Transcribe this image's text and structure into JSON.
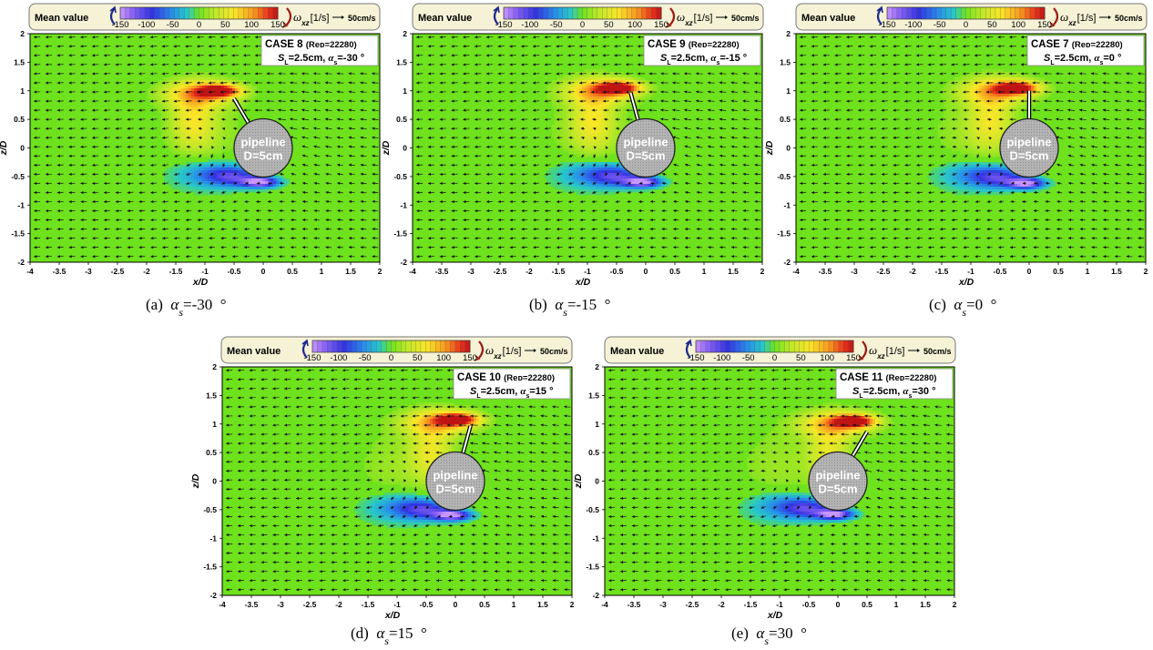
{
  "legend": {
    "title": "Mean value",
    "ticks": [
      "-150",
      "-100",
      "-50",
      "0",
      "50",
      "100",
      "150"
    ],
    "quantity_symbol": "ω",
    "quantity_subscript": "xz",
    "quantity_unit": "[1/s]",
    "reference_arrow_label": "50cm/s"
  },
  "axes": {
    "xlabel": "x/D",
    "ylabel": "z/D",
    "xticks": [
      "-4",
      "-3.5",
      "-3",
      "-2.5",
      "-2",
      "-1.5",
      "-1",
      "-0.5",
      "0",
      "0.5",
      "1",
      "1.5",
      "2"
    ],
    "yticks": [
      "2",
      "1.5",
      "1",
      "0.5",
      "0",
      "-0.5",
      "-1",
      "-1.5",
      "-2"
    ]
  },
  "pipeline": {
    "name": "pipeline",
    "diameter_label": "D=5cm"
  },
  "spoiler_length_label": "SL=2.5cm",
  "colors": {
    "background_green": "#6ee21d",
    "positive_vortex": "#e8321a",
    "negative_vortex": "#2d2fd8",
    "pipeline_fill": "#b4b4b4",
    "legend_box": "#f6f2d6"
  },
  "chart_data": [
    {
      "type": "heatmap",
      "panel": "(a)",
      "case": "CASE 8",
      "reynolds": "Re_D=22280",
      "spoiler_length": "S_L=2.5cm",
      "alpha_s_box": "α_s=-30 °",
      "caption": "(a)  α_s=-30  °",
      "alpha_s_deg": -30,
      "xlim": [
        -4,
        2
      ],
      "ylim": [
        -2,
        2
      ],
      "colorbar_range": [
        -150,
        150
      ],
      "pipeline_center": [
        0,
        0
      ],
      "pipeline_diameter_D": 1,
      "positive_vortex_peak": {
        "x": -0.75,
        "z": 1.0
      },
      "negative_vortex_peak": {
        "x": -0.05,
        "z": -0.6
      }
    },
    {
      "type": "heatmap",
      "panel": "(b)",
      "case": "CASE 9",
      "reynolds": "Re_D=22280",
      "spoiler_length": "S_L=2.5cm",
      "alpha_s_box": "α_s=-15 °",
      "caption": "(b)  α_s=-15  °",
      "alpha_s_deg": -15,
      "xlim": [
        -4,
        2
      ],
      "ylim": [
        -2,
        2
      ],
      "colorbar_range": [
        -150,
        150
      ],
      "pipeline_center": [
        0,
        0
      ],
      "pipeline_diameter_D": 1,
      "positive_vortex_peak": {
        "x": -0.45,
        "z": 1.05
      },
      "negative_vortex_peak": {
        "x": -0.05,
        "z": -0.6
      }
    },
    {
      "type": "heatmap",
      "panel": "(c)",
      "case": "CASE 7",
      "reynolds": "Re_D=22280",
      "spoiler_length": "S_L=2.5cm",
      "alpha_s_box": "α_s=0 °",
      "caption": "(c)  α_s=0  °",
      "alpha_s_deg": 0,
      "xlim": [
        -4,
        2
      ],
      "ylim": [
        -2,
        2
      ],
      "colorbar_range": [
        -150,
        150
      ],
      "pipeline_center": [
        0,
        0
      ],
      "pipeline_diameter_D": 1,
      "positive_vortex_peak": {
        "x": -0.2,
        "z": 1.05
      },
      "negative_vortex_peak": {
        "x": -0.05,
        "z": -0.62
      }
    },
    {
      "type": "heatmap",
      "panel": "(d)",
      "case": "CASE 10",
      "reynolds": "Re_D=22280",
      "spoiler_length": "S_L=2.5cm",
      "alpha_s_box": "α_s=15 °",
      "caption": "(d)  α_s=15  °",
      "alpha_s_deg": 15,
      "xlim": [
        -4,
        2
      ],
      "ylim": [
        -2,
        2
      ],
      "colorbar_range": [
        -150,
        150
      ],
      "pipeline_center": [
        0,
        0
      ],
      "pipeline_diameter_D": 1,
      "positive_vortex_peak": {
        "x": 0.05,
        "z": 1.08
      },
      "negative_vortex_peak": {
        "x": -0.05,
        "z": -0.6
      }
    },
    {
      "type": "heatmap",
      "panel": "(e)",
      "case": "CASE 11",
      "reynolds": "Re_D=22280",
      "spoiler_length": "S_L=2.5cm",
      "alpha_s_box": "α_s=30 °",
      "caption": "(e)  α_s=30  °",
      "alpha_s_deg": 30,
      "xlim": [
        -4,
        2
      ],
      "ylim": [
        -2,
        2
      ],
      "colorbar_range": [
        -150,
        150
      ],
      "pipeline_center": [
        0,
        0
      ],
      "pipeline_diameter_D": 1,
      "positive_vortex_peak": {
        "x": 0.3,
        "z": 1.05
      },
      "negative_vortex_peak": {
        "x": -0.05,
        "z": -0.58
      }
    }
  ]
}
